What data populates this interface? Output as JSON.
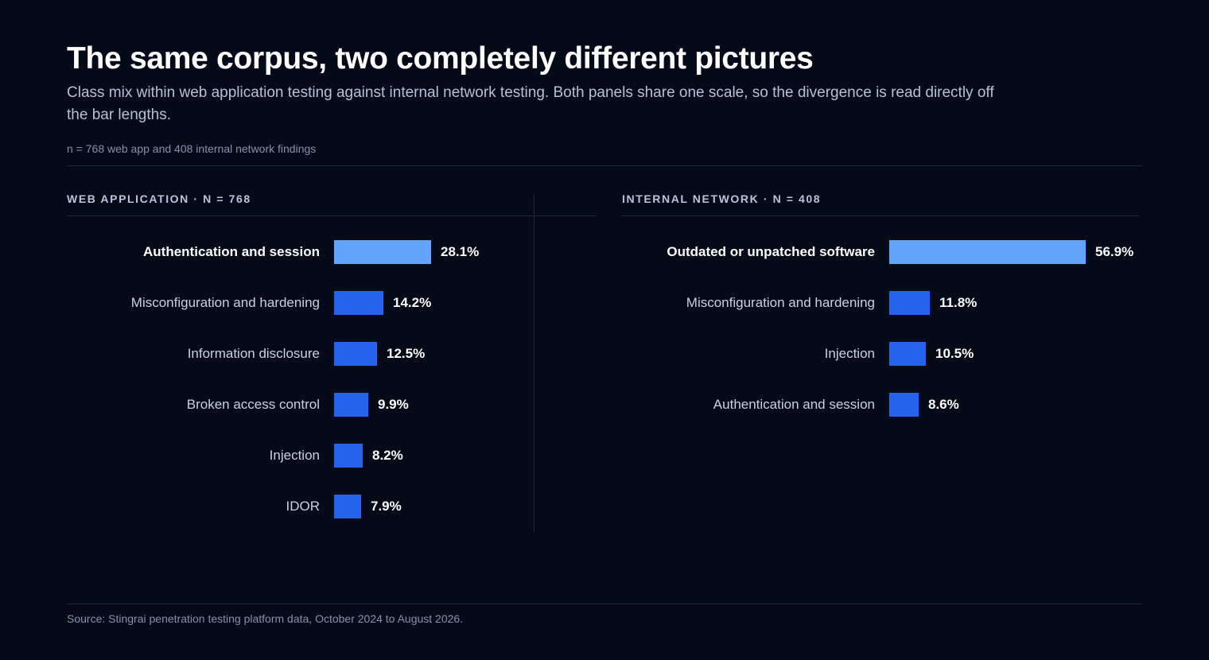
{
  "title": "The same corpus, two completely different pictures",
  "subtitle": "Class mix within web application testing against internal network testing. Both panels share one scale, so the divergence is read directly off the bar lengths.",
  "note": "n = 768 web app and 408 internal network findings",
  "source": "Source: Stingrai penetration testing platform data, October 2024 to August 2026.",
  "colors": {
    "background": "#050a18",
    "bar": "#2563eb",
    "bar_highlight": "#62a4fb"
  },
  "chart_data": [
    {
      "type": "bar",
      "orientation": "horizontal",
      "title": "WEB APPLICATION · N = 768",
      "categories": [
        "Authentication and session",
        "Misconfiguration and hardening",
        "Information disclosure",
        "Broken access control",
        "Injection",
        "IDOR"
      ],
      "values": [
        28.1,
        14.2,
        12.5,
        9.9,
        8.2,
        7.9
      ],
      "labels": [
        "28.1%",
        "14.2%",
        "12.5%",
        "9.9%",
        "8.2%",
        "7.9%"
      ],
      "highlight_index": 0,
      "xlim": [
        0,
        60
      ],
      "grid": false
    },
    {
      "type": "bar",
      "orientation": "horizontal",
      "title": "INTERNAL NETWORK · N = 408",
      "categories": [
        "Outdated or unpatched software",
        "Misconfiguration and hardening",
        "Injection",
        "Authentication and session"
      ],
      "values": [
        56.9,
        11.8,
        10.5,
        8.6
      ],
      "labels": [
        "56.9%",
        "11.8%",
        "10.5%",
        "8.6%"
      ],
      "highlight_index": 0,
      "xlim": [
        0,
        60
      ],
      "grid": false
    }
  ]
}
